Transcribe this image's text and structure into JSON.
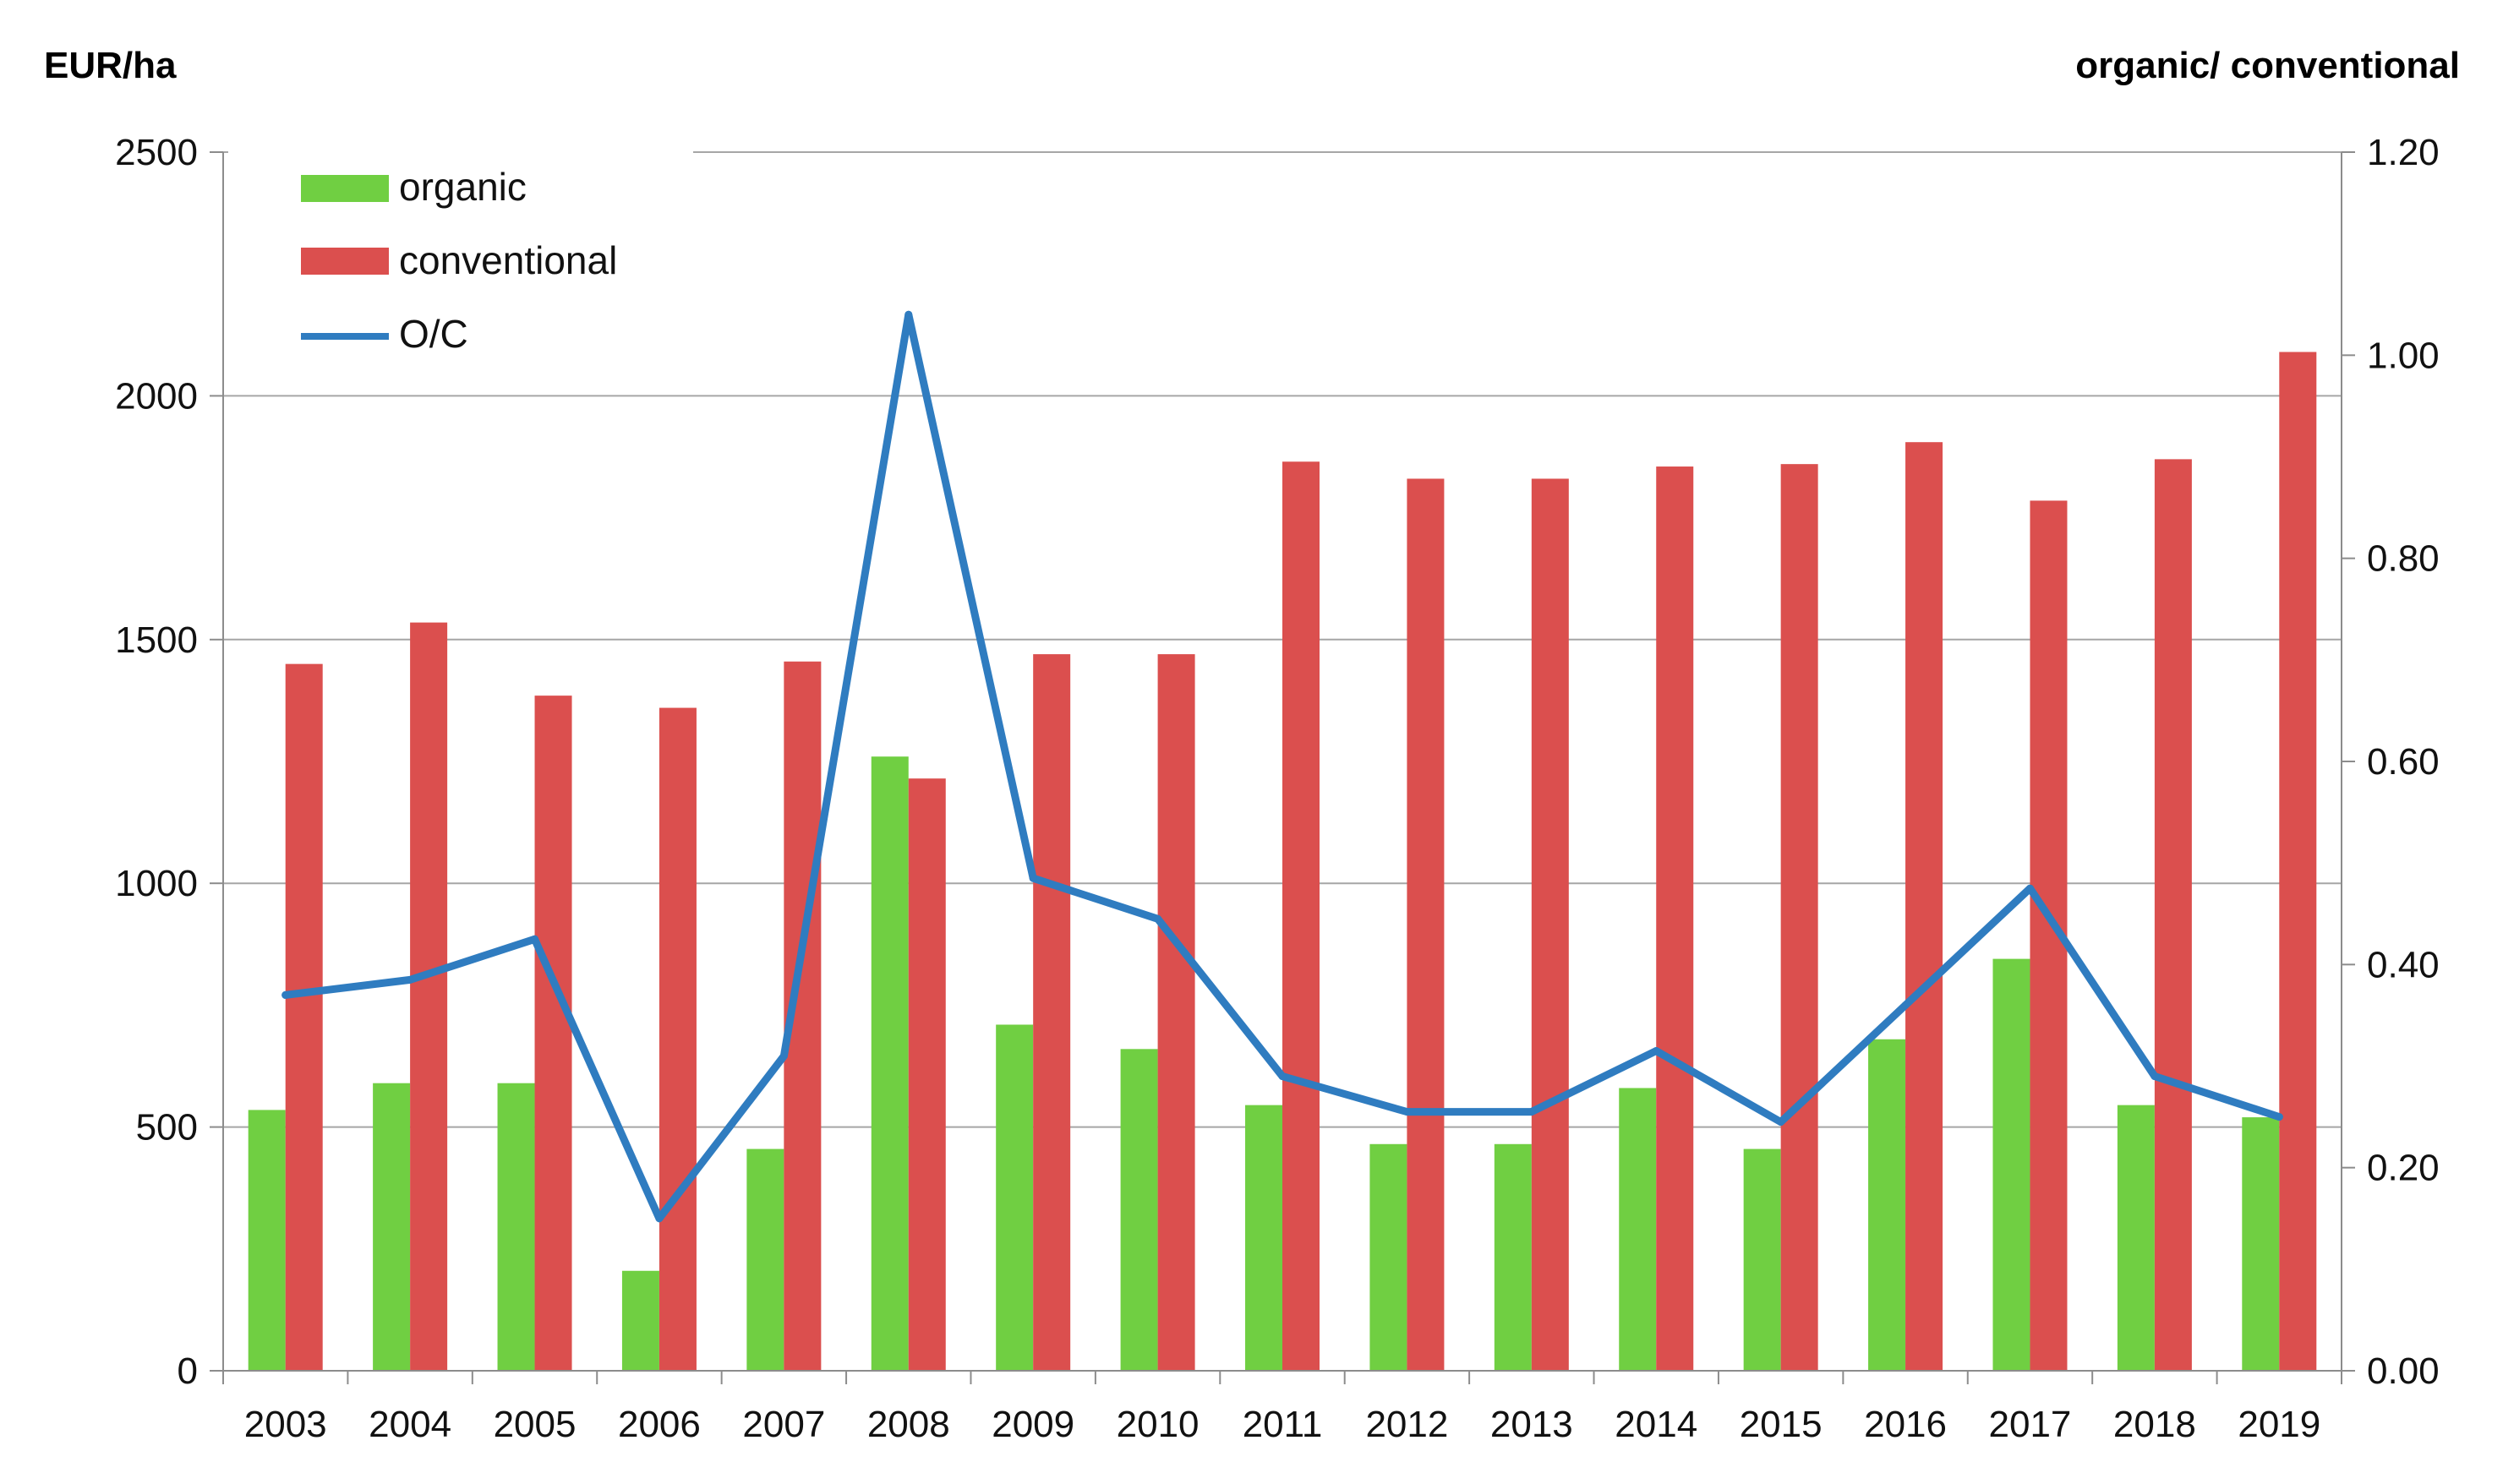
{
  "chart_data": {
    "type": "bar",
    "y_left_label": "EUR/ha",
    "y_right_label": "organic/ conventional",
    "categories": [
      "2003",
      "2004",
      "2005",
      "2006",
      "2007",
      "2008",
      "2009",
      "2010",
      "2011",
      "2012",
      "2013",
      "2014",
      "2015",
      "2016",
      "2017",
      "2018",
      "2019"
    ],
    "ylim_left": [
      0,
      2500
    ],
    "yticks_left": [
      "0",
      "500",
      "1000",
      "1500",
      "2000",
      "2500"
    ],
    "ylim_right": [
      0,
      1.2
    ],
    "yticks_right": [
      "0.00",
      "0.20",
      "0.40",
      "0.60",
      "0.80",
      "1.00",
      "1.20"
    ],
    "grid": true,
    "legend_position": "top-left",
    "series": [
      {
        "name": "organic",
        "kind": "bar",
        "axis": "left",
        "color": "#70CF42",
        "values": [
          535,
          590,
          590,
          205,
          455,
          1260,
          710,
          660,
          545,
          465,
          465,
          580,
          455,
          680,
          845,
          545,
          520
        ]
      },
      {
        "name": "conventional",
        "kind": "bar",
        "axis": "left",
        "color": "#DB4F4E",
        "values": [
          1450,
          1535,
          1385,
          1360,
          1455,
          1215,
          1470,
          1470,
          1865,
          1830,
          1830,
          1855,
          1860,
          1905,
          1785,
          1870,
          2090
        ]
      },
      {
        "name": "O/C",
        "kind": "line",
        "axis": "right",
        "color": "#2F7CC0",
        "values": [
          0.37,
          0.385,
          0.425,
          0.15,
          0.31,
          1.04,
          0.485,
          0.445,
          0.29,
          0.255,
          0.255,
          0.315,
          0.245,
          0.36,
          0.475,
          0.29,
          0.25
        ]
      }
    ]
  }
}
